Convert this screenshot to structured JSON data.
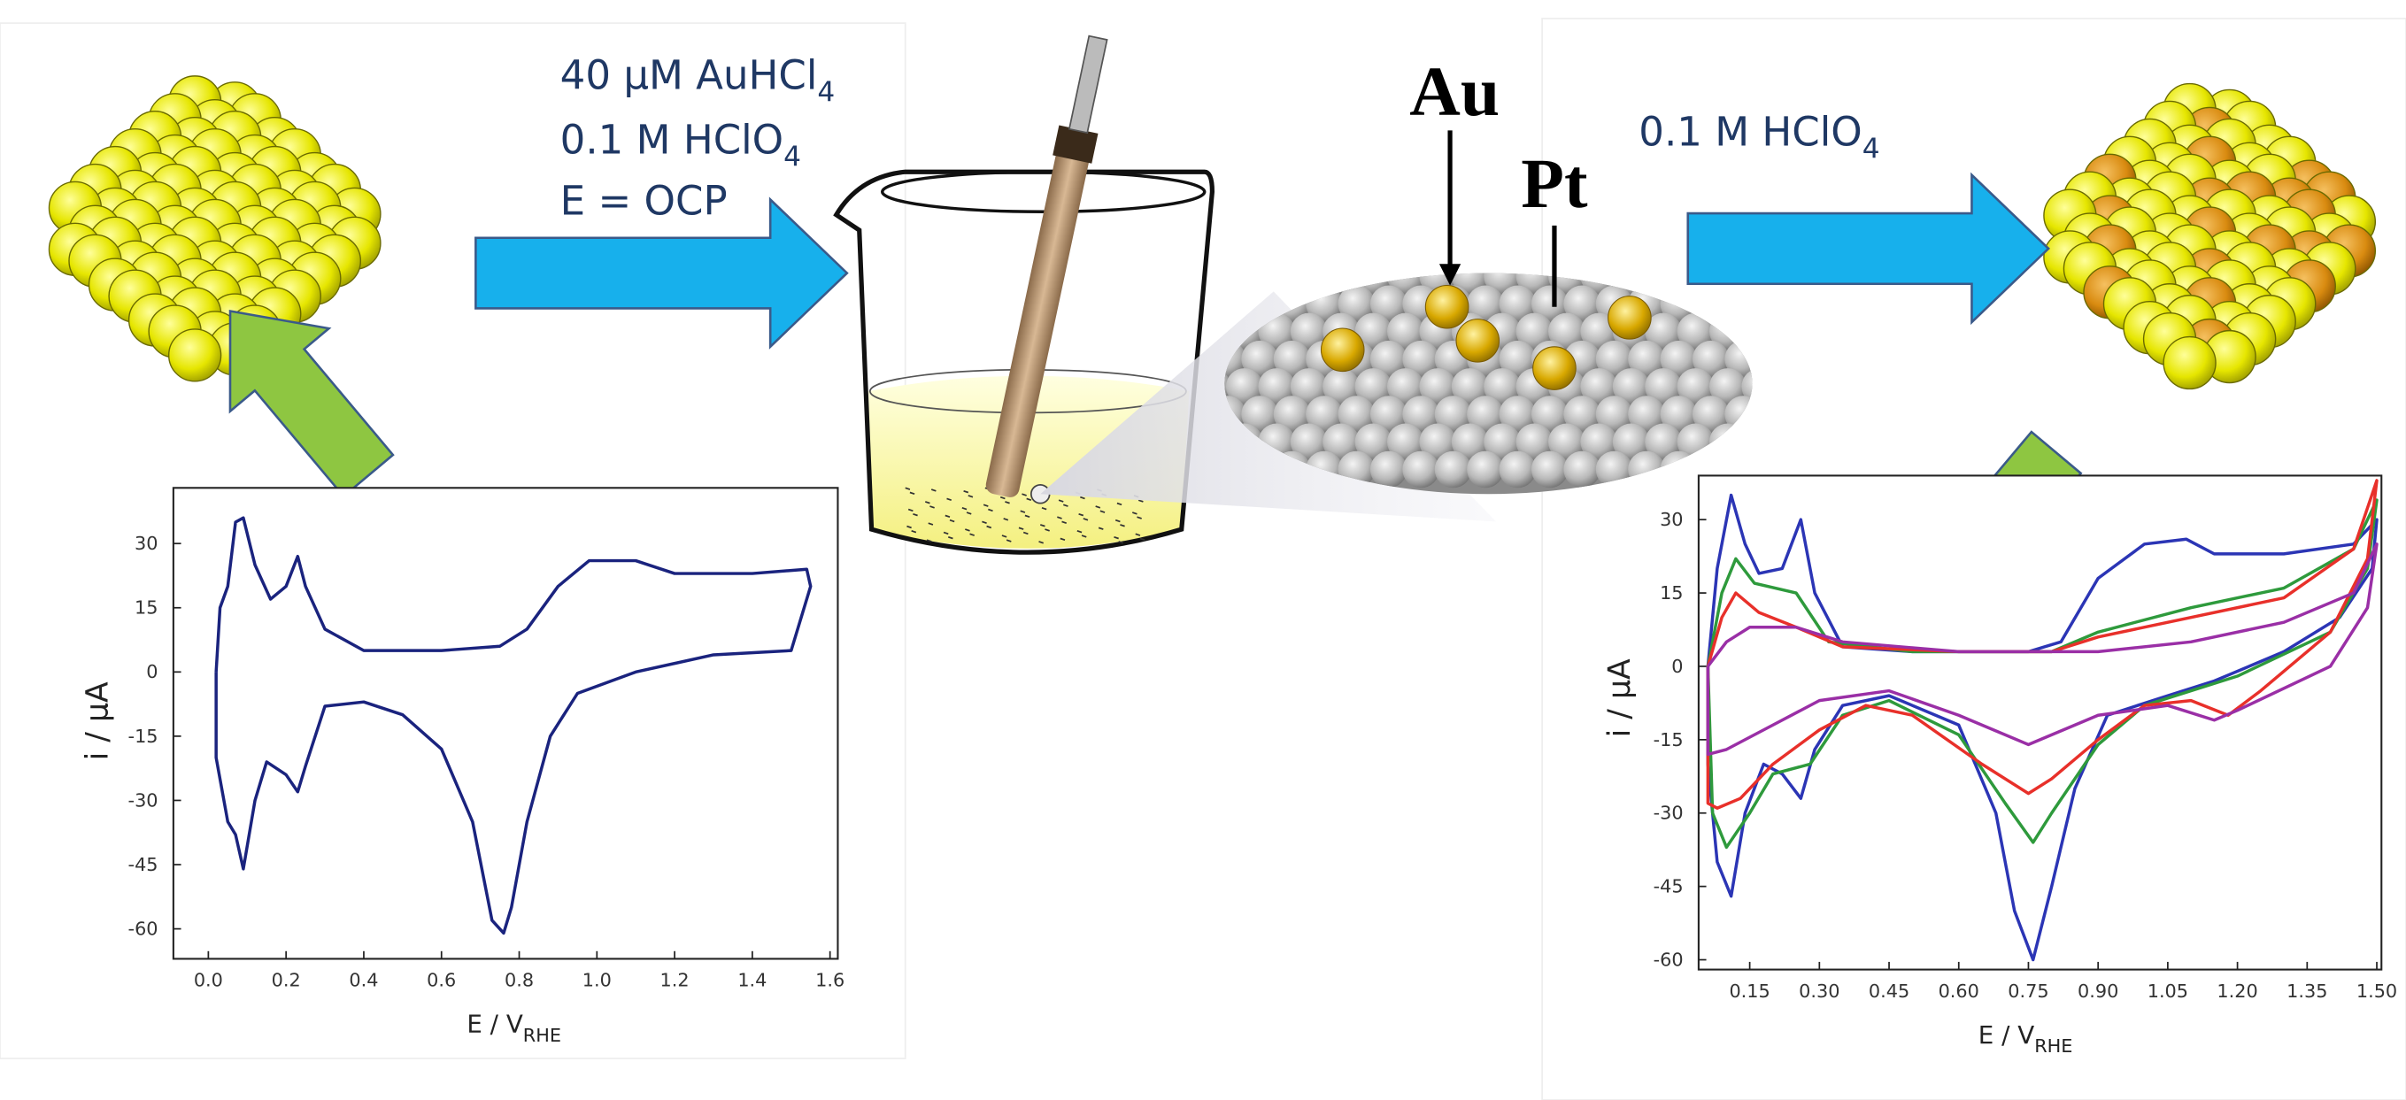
{
  "labels": {
    "reagent_1": {
      "text": "40 μM AuHCl",
      "sub": "4"
    },
    "reagent_2": {
      "text": "0.1 M HClO",
      "sub": "4"
    },
    "condition": "E = OCP",
    "au": "Au",
    "pt": "Pt",
    "reagent_3": {
      "text": "0.1 M HClO",
      "sub": "4"
    }
  },
  "chart_data": [
    {
      "type": "line",
      "ylabel": "i / μA",
      "xlabel": "E / V",
      "xlabel_sub": "RHE",
      "xlim": [
        -0.09,
        1.62
      ],
      "ylim": [
        -67,
        43
      ],
      "xticks": [
        {
          "value": 0,
          "label": "0.0"
        },
        0.2,
        0.4,
        0.6,
        0.8,
        {
          "value": 1,
          "label": "1.0"
        },
        1.2,
        1.4,
        1.6
      ],
      "yticks": [
        30,
        15,
        0,
        -15,
        -30,
        -45,
        -60
      ],
      "series": [
        {
          "color": "#1a237e",
          "x": [
            0.02,
            0.03,
            0.05,
            0.07,
            0.09,
            0.12,
            0.16,
            0.2,
            0.23,
            0.25,
            0.3,
            0.4,
            0.6,
            0.75,
            0.82,
            0.9,
            0.98,
            1.1,
            1.2,
            1.4,
            1.54,
            1.55,
            1.5,
            1.3,
            1.1,
            0.95,
            0.88,
            0.82,
            0.78,
            0.76,
            0.73,
            0.68,
            0.6,
            0.5,
            0.4,
            0.3,
            0.25,
            0.23,
            0.2,
            0.15,
            0.12,
            0.09,
            0.07,
            0.05,
            0.02,
            0.02
          ],
          "values": [
            0,
            15,
            20,
            35,
            36,
            25,
            17,
            20,
            27,
            20,
            10,
            5,
            5,
            6,
            10,
            20,
            26,
            26,
            23,
            23,
            24,
            20,
            5,
            4,
            0,
            -5,
            -15,
            -35,
            -55,
            -61,
            -58,
            -35,
            -18,
            -10,
            -7,
            -8,
            -22,
            -28,
            -24,
            -21,
            -30,
            -46,
            -38,
            -35,
            -20,
            0
          ]
        }
      ]
    },
    {
      "type": "line",
      "ylabel": "i / μA",
      "xlabel": "E / V",
      "xlabel_sub": "RHE",
      "xlim": [
        0.04,
        1.51
      ],
      "ylim": [
        -62,
        39
      ],
      "xticks": [
        0.15,
        {
          "value": 0.3,
          "label": "0.30"
        },
        0.45,
        {
          "value": 0.6,
          "label": "0.60"
        },
        0.75,
        {
          "value": 0.9,
          "label": "0.90"
        },
        1.05,
        {
          "value": 1.2,
          "label": "1.20"
        },
        1.35,
        {
          "value": 1.5,
          "label": "1.50"
        }
      ],
      "yticks": [
        30,
        15,
        0,
        -15,
        -30,
        -45,
        -60
      ],
      "series": [
        {
          "color": "#2b35b5",
          "x": [
            0.06,
            0.08,
            0.11,
            0.14,
            0.17,
            0.22,
            0.26,
            0.29,
            0.35,
            0.5,
            0.75,
            0.82,
            0.9,
            1.0,
            1.09,
            1.15,
            1.3,
            1.45,
            1.5,
            1.49,
            1.42,
            1.3,
            1.15,
            1.05,
            0.92,
            0.85,
            0.8,
            0.76,
            0.72,
            0.68,
            0.6,
            0.45,
            0.35,
            0.29,
            0.26,
            0.22,
            0.18,
            0.14,
            0.11,
            0.08,
            0.06,
            0.06
          ],
          "values": [
            0,
            20,
            35,
            25,
            19,
            20,
            30,
            15,
            4,
            3,
            3,
            5,
            18,
            25,
            26,
            23,
            23,
            25,
            30,
            20,
            10,
            3,
            -3,
            -6,
            -10,
            -25,
            -45,
            -60,
            -50,
            -30,
            -12,
            -6,
            -8,
            -17,
            -27,
            -22,
            -20,
            -30,
            -47,
            -40,
            -20,
            0
          ]
        },
        {
          "color": "#2e9a3c",
          "x": [
            0.06,
            0.09,
            0.12,
            0.16,
            0.25,
            0.32,
            0.5,
            0.8,
            0.9,
            1.1,
            1.3,
            1.45,
            1.5,
            1.48,
            1.4,
            1.2,
            1.0,
            0.9,
            0.8,
            0.76,
            0.7,
            0.6,
            0.45,
            0.35,
            0.28,
            0.2,
            0.15,
            0.1,
            0.07,
            0.06
          ],
          "values": [
            0,
            15,
            22,
            17,
            15,
            5,
            3,
            3,
            7,
            12,
            16,
            24,
            34,
            20,
            7,
            -2,
            -8,
            -16,
            -30,
            -36,
            -28,
            -14,
            -7,
            -10,
            -20,
            -22,
            -30,
            -37,
            -30,
            0
          ]
        },
        {
          "color": "#e8302a",
          "x": [
            0.06,
            0.09,
            0.12,
            0.17,
            0.25,
            0.35,
            0.6,
            0.8,
            0.9,
            1.1,
            1.3,
            1.45,
            1.5,
            1.48,
            1.4,
            1.25,
            1.18,
            1.1,
            1.0,
            0.9,
            0.8,
            0.75,
            0.65,
            0.5,
            0.4,
            0.3,
            0.2,
            0.13,
            0.08,
            0.06,
            0.06
          ],
          "values": [
            0,
            10,
            15,
            11,
            8,
            4,
            3,
            3,
            6,
            10,
            14,
            24,
            38,
            22,
            7,
            -5,
            -10,
            -7,
            -8,
            -15,
            -23,
            -26,
            -20,
            -10,
            -8,
            -13,
            -20,
            -27,
            -29,
            -28,
            0
          ]
        },
        {
          "color": "#9a2fa6",
          "x": [
            0.06,
            0.1,
            0.15,
            0.25,
            0.35,
            0.6,
            0.9,
            1.1,
            1.3,
            1.45,
            1.5,
            1.48,
            1.4,
            1.2,
            1.15,
            1.05,
            0.9,
            0.75,
            0.6,
            0.45,
            0.3,
            0.2,
            0.1,
            0.06,
            0.06
          ],
          "values": [
            0,
            5,
            8,
            8,
            5,
            3,
            3,
            5,
            9,
            15,
            25,
            12,
            0,
            -9,
            -11,
            -8,
            -10,
            -16,
            -10,
            -5,
            -7,
            -12,
            -17,
            -18,
            0
          ]
        }
      ]
    }
  ]
}
